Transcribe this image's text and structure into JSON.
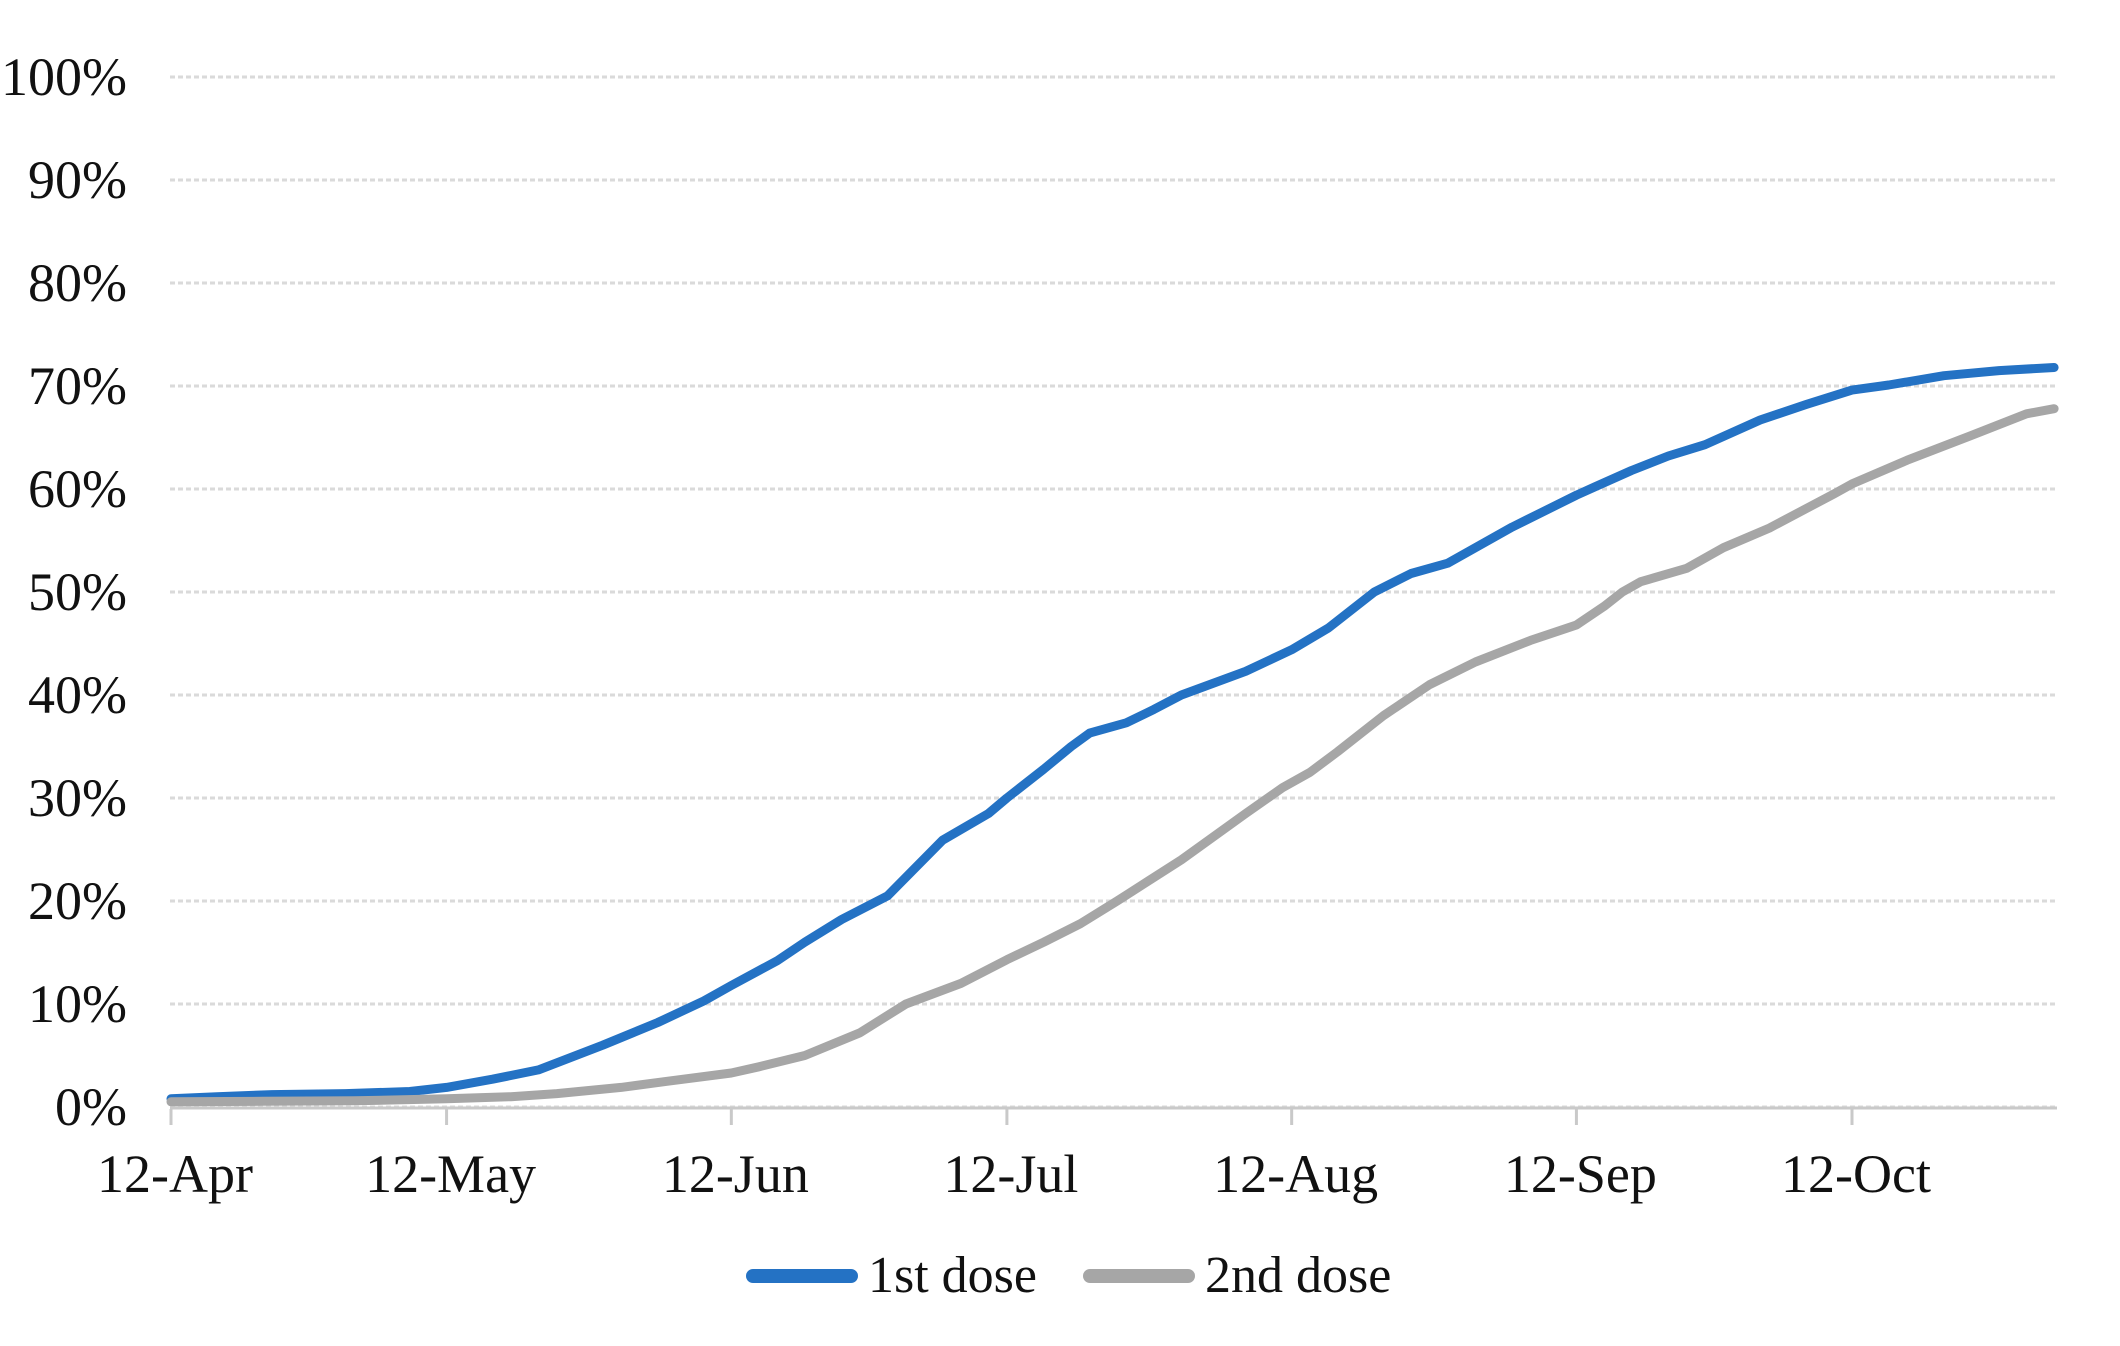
{
  "chart_data": {
    "type": "line",
    "title": "",
    "xlabel": "",
    "ylabel": "",
    "x_axis": {
      "tick_labels": [
        "12-Apr",
        "12-May",
        "12-Jun",
        "12-Jul",
        "12-Aug",
        "12-Sep",
        "12-Oct"
      ],
      "tick_day_offsets": [
        0,
        30,
        61,
        91,
        122,
        153,
        183
      ],
      "days_total": 205
    },
    "y_axis": {
      "min": 0,
      "max": 100,
      "step": 10,
      "tick_labels": [
        "0%",
        "10%",
        "20%",
        "30%",
        "40%",
        "50%",
        "60%",
        "70%",
        "80%",
        "90%",
        "100%"
      ]
    },
    "grid": "horizontal",
    "grid_color": "#DADADA",
    "axis_color": "#C9C9C9",
    "label_color": "#111111",
    "legend_position": "bottom",
    "series": [
      {
        "name": "1st dose",
        "color": "#2472C4",
        "points": [
          [
            0,
            0.8
          ],
          [
            5,
            1.0
          ],
          [
            11,
            1.2
          ],
          [
            19,
            1.3
          ],
          [
            26,
            1.5
          ],
          [
            30,
            1.9
          ],
          [
            35,
            2.7
          ],
          [
            40,
            3.6
          ],
          [
            47,
            6.0
          ],
          [
            53,
            8.2
          ],
          [
            58,
            10.3
          ],
          [
            61,
            11.8
          ],
          [
            66,
            14.2
          ],
          [
            69,
            16.0
          ],
          [
            73,
            18.2
          ],
          [
            78,
            20.5
          ],
          [
            84,
            25.9
          ],
          [
            89,
            28.5
          ],
          [
            91,
            30.0
          ],
          [
            95,
            32.8
          ],
          [
            98,
            35.0
          ],
          [
            100,
            36.3
          ],
          [
            104,
            37.3
          ],
          [
            107,
            38.6
          ],
          [
            110,
            40.0
          ],
          [
            117,
            42.3
          ],
          [
            122,
            44.4
          ],
          [
            126,
            46.5
          ],
          [
            131,
            50.0
          ],
          [
            135,
            51.8
          ],
          [
            139,
            52.8
          ],
          [
            146,
            56.3
          ],
          [
            153,
            59.4
          ],
          [
            155,
            60.2
          ],
          [
            159,
            61.8
          ],
          [
            163,
            63.2
          ],
          [
            167,
            64.3
          ],
          [
            173,
            66.7
          ],
          [
            178,
            68.2
          ],
          [
            183,
            69.6
          ],
          [
            187,
            70.1
          ],
          [
            193,
            71.0
          ],
          [
            199,
            71.5
          ],
          [
            205,
            71.8
          ]
        ]
      },
      {
        "name": "2nd dose",
        "color": "#A6A6A6",
        "points": [
          [
            0,
            0.5
          ],
          [
            10,
            0.55
          ],
          [
            20,
            0.6
          ],
          [
            30,
            0.8
          ],
          [
            37,
            1.0
          ],
          [
            42,
            1.3
          ],
          [
            49,
            1.9
          ],
          [
            54,
            2.5
          ],
          [
            61,
            3.3
          ],
          [
            64,
            3.9
          ],
          [
            69,
            5.0
          ],
          [
            75,
            7.2
          ],
          [
            80,
            10.0
          ],
          [
            86,
            12.0
          ],
          [
            91,
            14.3
          ],
          [
            95,
            16.0
          ],
          [
            99,
            17.8
          ],
          [
            103,
            20.0
          ],
          [
            110,
            24.0
          ],
          [
            117,
            28.5
          ],
          [
            121,
            31.0
          ],
          [
            124,
            32.5
          ],
          [
            127,
            34.5
          ],
          [
            132,
            38.0
          ],
          [
            137,
            41.0
          ],
          [
            142,
            43.2
          ],
          [
            148,
            45.3
          ],
          [
            153,
            46.8
          ],
          [
            156,
            48.6
          ],
          [
            158,
            50.0
          ],
          [
            160,
            51.0
          ],
          [
            165,
            52.3
          ],
          [
            169,
            54.3
          ],
          [
            174,
            56.2
          ],
          [
            181,
            59.5
          ],
          [
            183,
            60.5
          ],
          [
            189,
            62.8
          ],
          [
            196,
            65.2
          ],
          [
            202,
            67.3
          ],
          [
            205,
            67.8
          ]
        ]
      }
    ]
  },
  "legend": {
    "first_dose_label": "1st dose",
    "second_dose_label": "2nd dose"
  }
}
